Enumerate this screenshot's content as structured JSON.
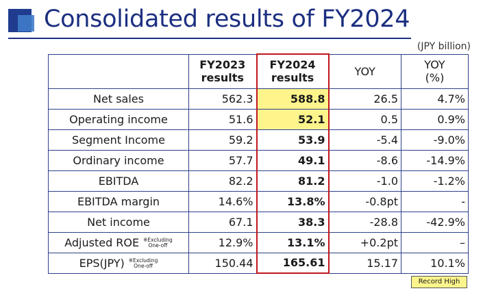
{
  "title": "Consolidated results of FY2024",
  "unit": "(JPY billion)",
  "columns": {
    "fy2023": [
      "FY2023",
      "results"
    ],
    "fy2024": [
      "FY2024",
      "results"
    ],
    "yoy": "YOY",
    "yoy_pct": [
      "YOY",
      "(%)"
    ]
  },
  "rows": [
    {
      "label": "Net sales",
      "note": null,
      "fy2023": "562.3",
      "fy2024": "588.8",
      "yoy": "26.5",
      "yoy_pct": "4.7%",
      "record": true
    },
    {
      "label": "Operating income",
      "note": null,
      "fy2023": "51.6",
      "fy2024": "52.1",
      "yoy": "0.5",
      "yoy_pct": "0.9%",
      "record": true
    },
    {
      "label": "Segment Income",
      "note": null,
      "fy2023": "59.2",
      "fy2024": "53.9",
      "yoy": "-5.4",
      "yoy_pct": "-9.0%",
      "record": false
    },
    {
      "label": "Ordinary income",
      "note": null,
      "fy2023": "57.7",
      "fy2024": "49.1",
      "yoy": "-8.6",
      "yoy_pct": "-14.9%",
      "record": false
    },
    {
      "label": "EBITDA",
      "note": null,
      "fy2023": "82.2",
      "fy2024": "81.2",
      "yoy": "-1.0",
      "yoy_pct": "-1.2%",
      "record": false
    },
    {
      "label": "EBITDA margin",
      "note": null,
      "fy2023": "14.6%",
      "fy2024": "13.8%",
      "yoy": "-0.8pt",
      "yoy_pct": "-",
      "record": false
    },
    {
      "label": "Net income",
      "note": null,
      "fy2023": "67.1",
      "fy2024": "38.3",
      "yoy": "-28.8",
      "yoy_pct": "-42.9%",
      "record": false
    },
    {
      "label": "Adjusted ROE",
      "note": [
        "※Excluding",
        "One-off"
      ],
      "fy2023": "12.9%",
      "fy2024": "13.1%",
      "yoy": "+0.2pt",
      "yoy_pct": "–",
      "record": false
    },
    {
      "label": "EPS(JPY)",
      "note": [
        "※Excluding",
        "One-off"
      ],
      "fy2023": "150.44",
      "fy2024": "165.61",
      "yoy": "15.17",
      "yoy_pct": "10.1%",
      "record": false
    }
  ],
  "legend": "Record High",
  "colors": {
    "title": "#1b2f80",
    "highlight": "#fdf58c",
    "fy2024_border": "#c0161c"
  }
}
